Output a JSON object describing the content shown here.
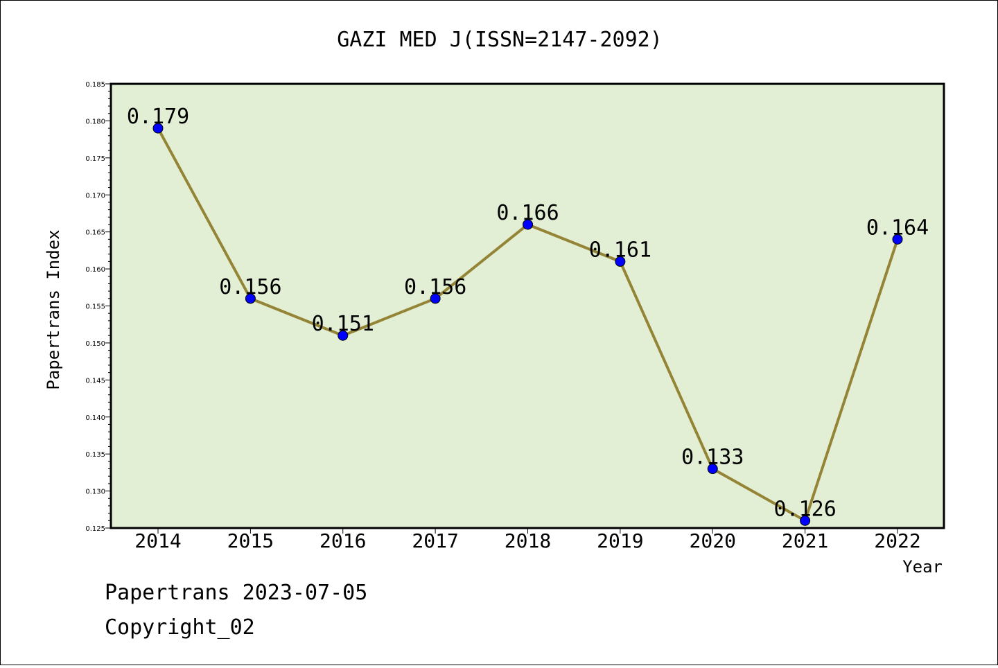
{
  "chart_data": {
    "type": "line",
    "title": "GAZI MED J(ISSN=2147-2092)",
    "xlabel": "Year",
    "ylabel": "Papertrans Index",
    "categories": [
      "2014",
      "2015",
      "2016",
      "2017",
      "2018",
      "2019",
      "2020",
      "2021",
      "2022"
    ],
    "series": [
      {
        "values": [
          0.179,
          0.156,
          0.151,
          0.156,
          0.166,
          0.161,
          0.133,
          0.126,
          0.164
        ],
        "labels": [
          "0.179",
          "0.156",
          "0.151",
          "0.156",
          "0.166",
          "0.161",
          "0.133",
          "0.126",
          "0.164"
        ]
      }
    ],
    "ylim": [
      0.125,
      0.185
    ],
    "yticks": [
      "0.125",
      "0.130",
      "0.135",
      "0.140",
      "0.145",
      "0.150",
      "0.155",
      "0.160",
      "0.165",
      "0.170",
      "0.175",
      "0.180",
      "0.185"
    ],
    "grid": false,
    "colors": {
      "plot_bg": "#e2efd4",
      "line": "#948436",
      "marker": "#0000ff"
    }
  },
  "footer": {
    "line1": "Papertrans 2023-07-05",
    "line2": "Copyright_02"
  }
}
